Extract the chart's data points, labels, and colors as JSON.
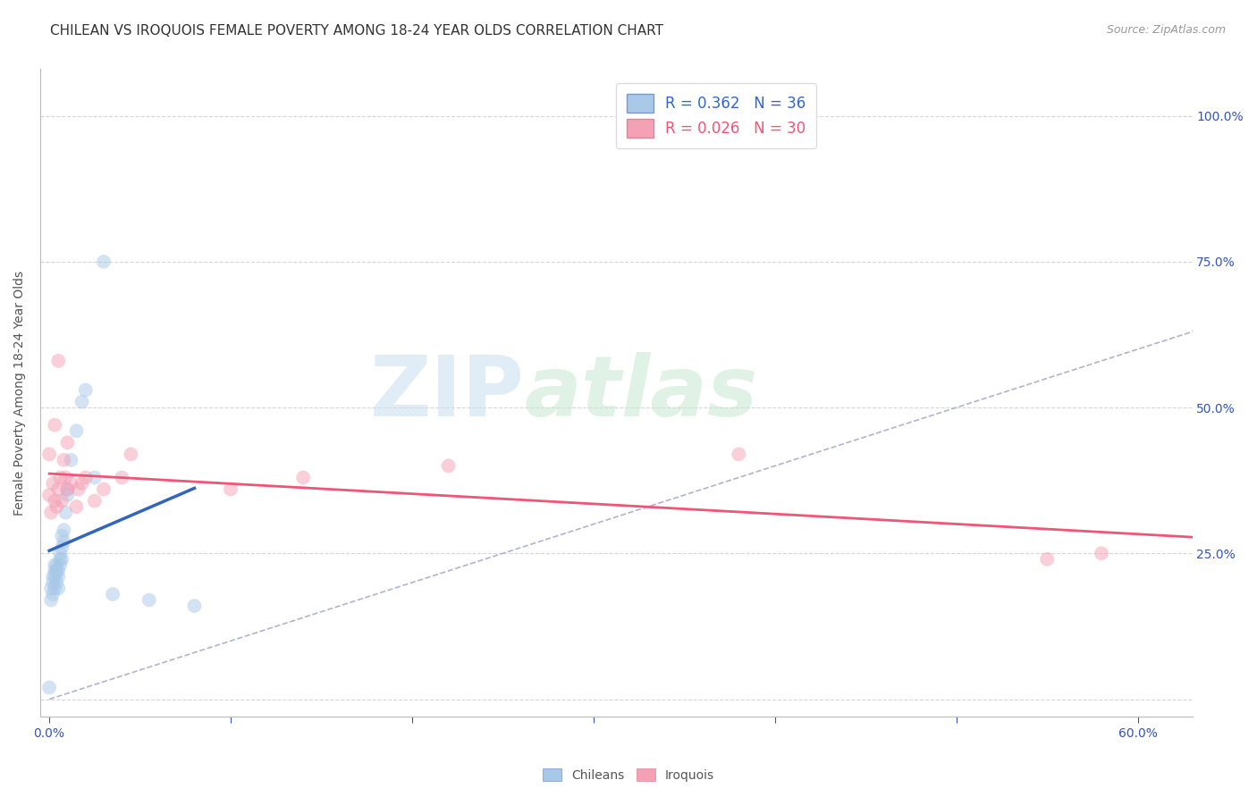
{
  "title": "CHILEAN VS IROQUOIS FEMALE POVERTY AMONG 18-24 YEAR OLDS CORRELATION CHART",
  "source": "Source: ZipAtlas.com",
  "xlabel_ticks": [
    0.0,
    0.1,
    0.2,
    0.3,
    0.4,
    0.5,
    0.6
  ],
  "xlabel_labels": [
    "0.0%",
    "",
    "",
    "",
    "",
    "",
    "60.0%"
  ],
  "ylabel_ticks": [
    0.0,
    0.25,
    0.5,
    0.75,
    1.0
  ],
  "ylabel_right_labels": [
    "",
    "25.0%",
    "50.0%",
    "75.0%",
    "100.0%"
  ],
  "xlim": [
    -0.005,
    0.63
  ],
  "ylim": [
    -0.03,
    1.08
  ],
  "ylabel": "Female Poverty Among 18-24 Year Olds",
  "chilean_color": "#a8c8e8",
  "iroquois_color": "#f4a0b5",
  "chilean_line_color": "#3366bb",
  "iroquois_line_color": "#ee5577",
  "chilean_R": 0.362,
  "chilean_N": 36,
  "iroquois_R": 0.026,
  "iroquois_N": 30,
  "chilean_x": [
    0.0,
    0.001,
    0.001,
    0.002,
    0.002,
    0.002,
    0.003,
    0.003,
    0.003,
    0.003,
    0.004,
    0.004,
    0.004,
    0.005,
    0.005,
    0.005,
    0.006,
    0.006,
    0.006,
    0.007,
    0.007,
    0.007,
    0.008,
    0.008,
    0.009,
    0.01,
    0.01,
    0.012,
    0.015,
    0.018,
    0.02,
    0.025,
    0.03,
    0.035,
    0.055,
    0.08
  ],
  "chilean_y": [
    0.02,
    0.17,
    0.19,
    0.18,
    0.2,
    0.21,
    0.19,
    0.21,
    0.22,
    0.23,
    0.2,
    0.22,
    0.23,
    0.19,
    0.21,
    0.22,
    0.23,
    0.24,
    0.25,
    0.24,
    0.26,
    0.28,
    0.27,
    0.29,
    0.32,
    0.35,
    0.36,
    0.41,
    0.46,
    0.51,
    0.53,
    0.38,
    0.75,
    0.18,
    0.17,
    0.16
  ],
  "iroquois_x": [
    0.0,
    0.0,
    0.001,
    0.002,
    0.003,
    0.003,
    0.004,
    0.005,
    0.005,
    0.006,
    0.007,
    0.008,
    0.009,
    0.01,
    0.01,
    0.012,
    0.015,
    0.016,
    0.018,
    0.02,
    0.025,
    0.03,
    0.04,
    0.045,
    0.1,
    0.14,
    0.22,
    0.38,
    0.55,
    0.58
  ],
  "iroquois_y": [
    0.35,
    0.42,
    0.32,
    0.37,
    0.34,
    0.47,
    0.33,
    0.36,
    0.58,
    0.38,
    0.34,
    0.41,
    0.38,
    0.44,
    0.36,
    0.37,
    0.33,
    0.36,
    0.37,
    0.38,
    0.34,
    0.36,
    0.38,
    0.42,
    0.36,
    0.38,
    0.4,
    0.42,
    0.24,
    0.25
  ],
  "watermark_zip": "ZIP",
  "watermark_atlas": "atlas",
  "background_color": "#ffffff",
  "grid_color": "#cccccc",
  "title_fontsize": 11,
  "axis_label_fontsize": 10,
  "tick_fontsize": 10,
  "marker_size": 130,
  "marker_alpha": 0.5,
  "legend_fontsize": 12
}
